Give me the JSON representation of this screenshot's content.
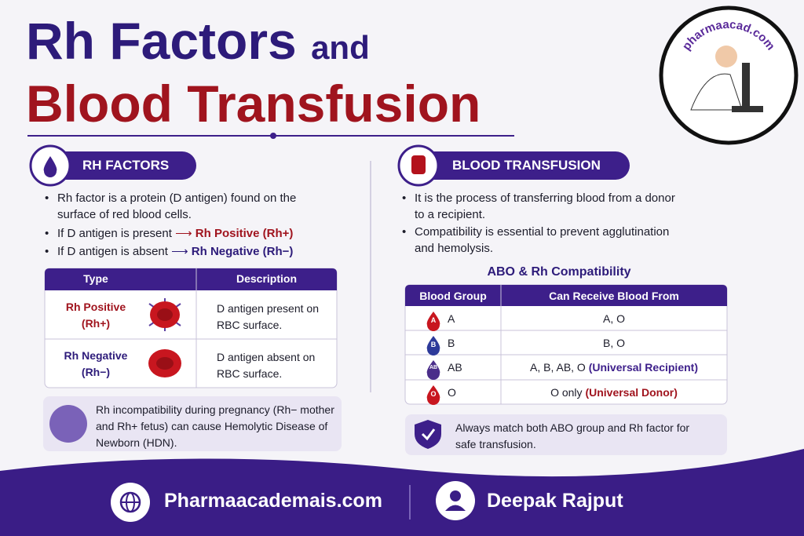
{
  "header": {
    "title_line1": "Rh Factors",
    "title_line1_suffix": "and",
    "title_line2": "Blood Transfusion"
  },
  "logo": {
    "text": "pharmaacad.com"
  },
  "rh_factors": {
    "heading": "RH FACTORS",
    "bullet_1": "Rh factor is a protein (D antigen) found on the surface of red blood cells.",
    "bullet_2": {
      "text": "If D antigen is present",
      "result": "Rh Positive (Rh+)"
    },
    "bullet_3": {
      "text": "If D antigen is absent",
      "result": "Rh Negative (Rh−)"
    },
    "table": {
      "headers": [
        "Type",
        "Description"
      ],
      "rows": [
        {
          "type": "Rh Positive (Rh+)",
          "description": "D antigen present on RBC surface."
        },
        {
          "type": "Rh Negative (Rh−)",
          "description": "D antigen absent on RBC surface."
        }
      ]
    },
    "note": "Rh incompatibility during pregnancy (Rh− mother and Rh+ fetus) can cause Hemolytic Disease of Newborn (HDN)."
  },
  "blood_transfusion": {
    "heading": "BLOOD TRANSFUSION",
    "bullet_1": "It is the process of transferring blood from a donor to a recipient.",
    "bullet_2": "Compatibility is essential to prevent agglutination and hemolysis.",
    "table_title": "ABO & Rh Compatibility",
    "table": {
      "headers": [
        "Blood Group",
        "Can Receive Blood From"
      ],
      "rows": [
        {
          "group": "A",
          "receive": "A, O"
        },
        {
          "group": "B",
          "receive": "B, O"
        },
        {
          "group": "AB",
          "receive": "A, B, AB, O",
          "note": "(Universal Recipient)"
        },
        {
          "group": "O",
          "receive": "O only",
          "note": "(Universal Donor)"
        }
      ]
    },
    "note": "Always match both ABO group and Rh factor for safe transfusion."
  },
  "footer": {
    "website": "Pharmaacademais.com",
    "author": "Deepak Rajput"
  }
}
